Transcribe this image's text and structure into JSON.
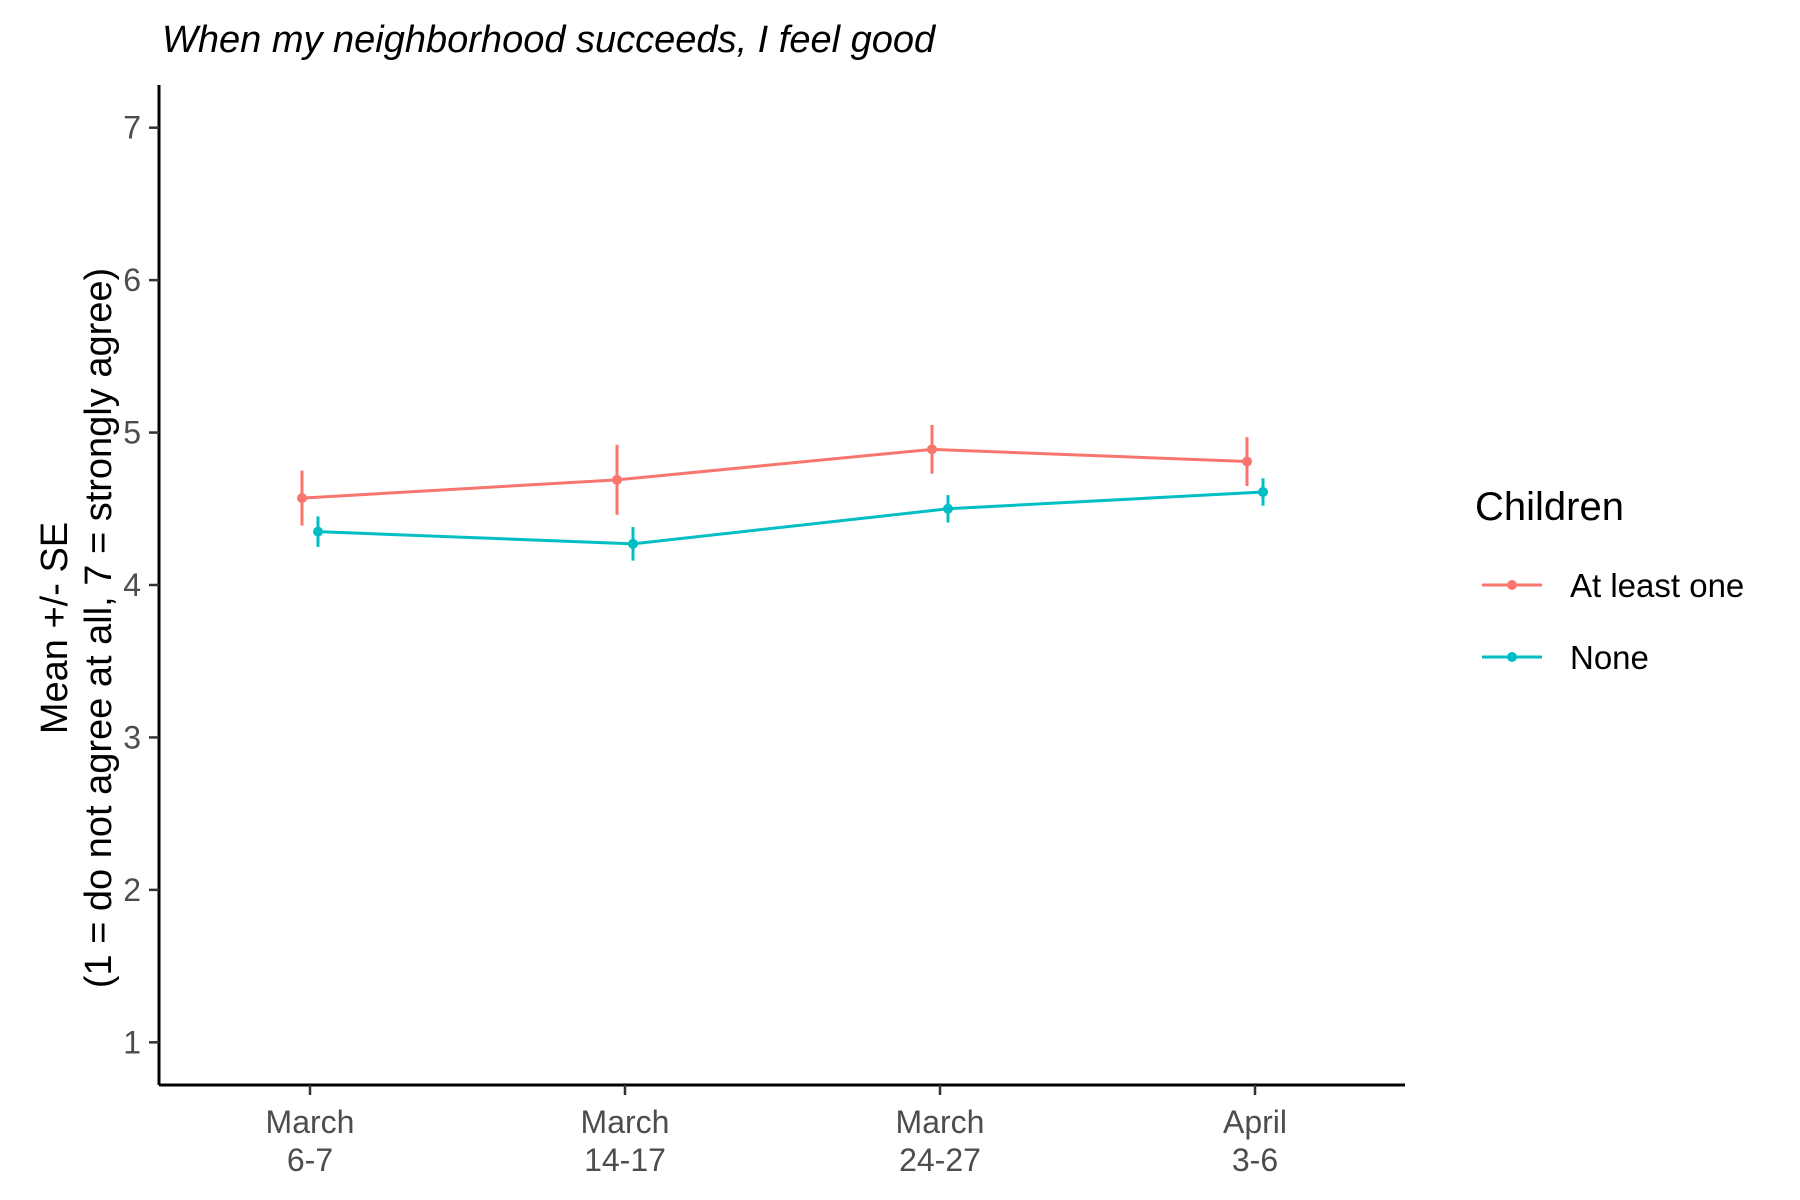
{
  "chart_data": {
    "type": "line",
    "title": "When my neighborhood succeeds, I feel good",
    "xlabel": "",
    "ylabel_lines": [
      "Mean +/- SE",
      "(1 = do not agree at all, 7 = strongly agree)"
    ],
    "categories": [
      [
        "March",
        "6-7"
      ],
      [
        "March",
        "14-17"
      ],
      [
        "March",
        "24-27"
      ],
      [
        "April",
        "3-6"
      ]
    ],
    "ylim": [
      0.72,
      7.28
    ],
    "yticks": [
      1,
      2,
      3,
      4,
      5,
      6,
      7
    ],
    "grid": false,
    "legend": {
      "title": "Children",
      "placement": "right"
    },
    "series": [
      {
        "name": "At least one",
        "color": "#F8766D",
        "values": [
          4.57,
          4.69,
          4.89,
          4.81
        ],
        "se": [
          0.18,
          0.23,
          0.16,
          0.16
        ],
        "dodge": -1
      },
      {
        "name": "None",
        "color": "#00BFC4",
        "values": [
          4.35,
          4.27,
          4.5,
          4.61
        ],
        "se": [
          0.1,
          0.11,
          0.09,
          0.09
        ],
        "dodge": 1
      }
    ]
  }
}
